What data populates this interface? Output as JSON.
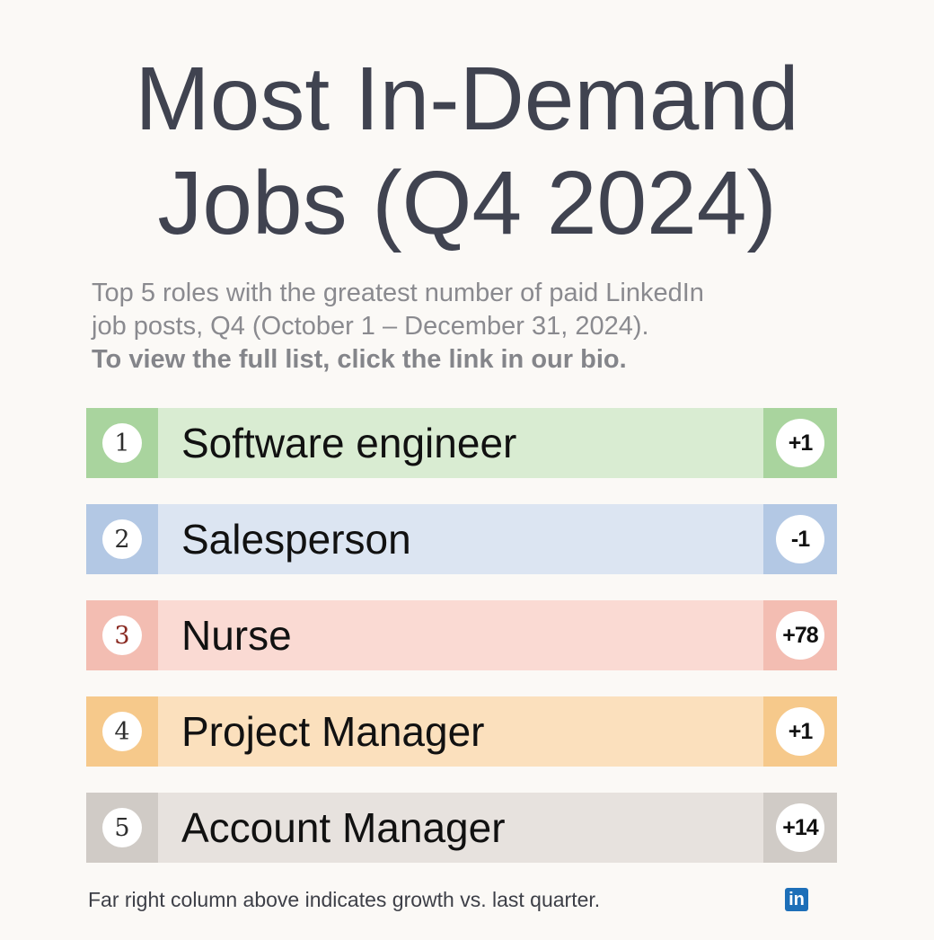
{
  "header": {
    "title_line1": "Most In-Demand",
    "title_line2": "Jobs (Q4 2024)",
    "subtitle_line1": "Top 5 roles with the greatest number of paid LinkedIn",
    "subtitle_line2": "job posts, Q4 (October 1 – December 31, 2024).",
    "call_to_action": "To view the full list, click the link in our bio."
  },
  "jobs": [
    {
      "rank": "1",
      "title": "Software engineer",
      "change": "+1",
      "rank_color": "#a9d49e",
      "row_color": "#d9ecd2",
      "rank_text_color": "#2e2e2e"
    },
    {
      "rank": "2",
      "title": "Salesperson",
      "change": "-1",
      "rank_color": "#b3c8e4",
      "row_color": "#dce5f2",
      "rank_text_color": "#2e2e2e"
    },
    {
      "rank": "3",
      "title": "Nurse",
      "change": "+78",
      "rank_color": "#f3bdb2",
      "row_color": "#fadad3",
      "rank_text_color": "#8a2a22"
    },
    {
      "rank": "4",
      "title": "Project Manager",
      "change": "+1",
      "rank_color": "#f6c98b",
      "row_color": "#fbe0bd",
      "rank_text_color": "#2e2e2e"
    },
    {
      "rank": "5",
      "title": "Account Manager",
      "change": "+14",
      "rank_color": "#d0cbc6",
      "row_color": "#e7e2de",
      "rank_text_color": "#2e2e2e"
    }
  ],
  "footer": {
    "note": "Far right column above indicates growth vs. last quarter.",
    "logo_text": "in",
    "logo_icon": "linkedin-icon"
  }
}
